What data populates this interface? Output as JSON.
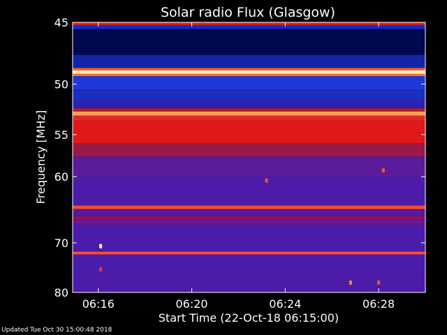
{
  "chart_data": {
    "type": "heatmap",
    "title": "Solar radio Flux (Glasgow)",
    "xlabel": "Start Time (22-Oct-18 06:15:00)",
    "ylabel": "Frequency [MHz]",
    "x_ticks": [
      "06:16",
      "06:20",
      "06:24",
      "06:28"
    ],
    "x_tick_minutes": [
      1,
      5,
      9,
      13
    ],
    "xlim_minutes": [
      -0.1,
      15.0
    ],
    "y_ticks": [
      45,
      50,
      55,
      60,
      70,
      80
    ],
    "ylim": [
      45,
      80
    ],
    "y_scale": "reciprocal",
    "bands": [
      {
        "f_start": 45.0,
        "f_end": 45.2,
        "color": "#e02020"
      },
      {
        "f_start": 45.2,
        "f_end": 45.5,
        "color": "#1a28c8"
      },
      {
        "f_start": 45.5,
        "f_end": 47.5,
        "color": "#000850"
      },
      {
        "f_start": 47.5,
        "f_end": 48.6,
        "color": "#1424a8"
      },
      {
        "f_start": 48.6,
        "f_end": 48.8,
        "color": "#ff6020"
      },
      {
        "f_start": 48.8,
        "f_end": 49.1,
        "color": "#fff0c0"
      },
      {
        "f_start": 49.1,
        "f_end": 49.3,
        "color": "#ff7020"
      },
      {
        "f_start": 49.3,
        "f_end": 50.5,
        "color": "#1f36d8"
      },
      {
        "f_start": 50.5,
        "f_end": 51.5,
        "color": "#1a2ec0"
      },
      {
        "f_start": 51.5,
        "f_end": 52.3,
        "color": "#3020b0"
      },
      {
        "f_start": 52.3,
        "f_end": 52.6,
        "color": "#c01818"
      },
      {
        "f_start": 52.6,
        "f_end": 53.0,
        "color": "#ffa050"
      },
      {
        "f_start": 53.0,
        "f_end": 53.5,
        "color": "#e02828"
      },
      {
        "f_start": 53.5,
        "f_end": 56.0,
        "color": "#e01818"
      },
      {
        "f_start": 56.0,
        "f_end": 57.5,
        "color": "#9c1848"
      },
      {
        "f_start": 57.5,
        "f_end": 60.0,
        "color": "#5c1a9c"
      },
      {
        "f_start": 60.0,
        "f_end": 64.0,
        "color": "#4c1ca8"
      },
      {
        "f_start": 64.0,
        "f_end": 64.5,
        "color": "#ff5020"
      },
      {
        "f_start": 64.5,
        "f_end": 65.6,
        "color": "#5818a0"
      },
      {
        "f_start": 65.6,
        "f_end": 66.1,
        "color": "#8c1858"
      },
      {
        "f_start": 66.1,
        "f_end": 67.0,
        "color": "#6a1890"
      },
      {
        "f_start": 67.0,
        "f_end": 71.6,
        "color": "#4a1cac"
      },
      {
        "f_start": 71.6,
        "f_end": 72.1,
        "color": "#ff5020"
      },
      {
        "f_start": 72.1,
        "f_end": 76.0,
        "color": "#4a1cac"
      },
      {
        "f_start": 76.0,
        "f_end": 80.0,
        "color": "#4c1ca8"
      }
    ],
    "spots": [
      {
        "minute": 1.1,
        "freq": 70.6,
        "color": "#ffffa0"
      },
      {
        "minute": 1.1,
        "freq": 75.0,
        "color": "#ff3020"
      },
      {
        "minute": 8.2,
        "freq": 60.5,
        "color": "#ff5020"
      },
      {
        "minute": 13.2,
        "freq": 59.2,
        "color": "#ff5020"
      },
      {
        "minute": 11.8,
        "freq": 77.8,
        "color": "#ff8030"
      },
      {
        "minute": 13.0,
        "freq": 77.8,
        "color": "#ff5020"
      }
    ]
  },
  "footer": "Updated Tue Oct 30 15:00:48 2018"
}
